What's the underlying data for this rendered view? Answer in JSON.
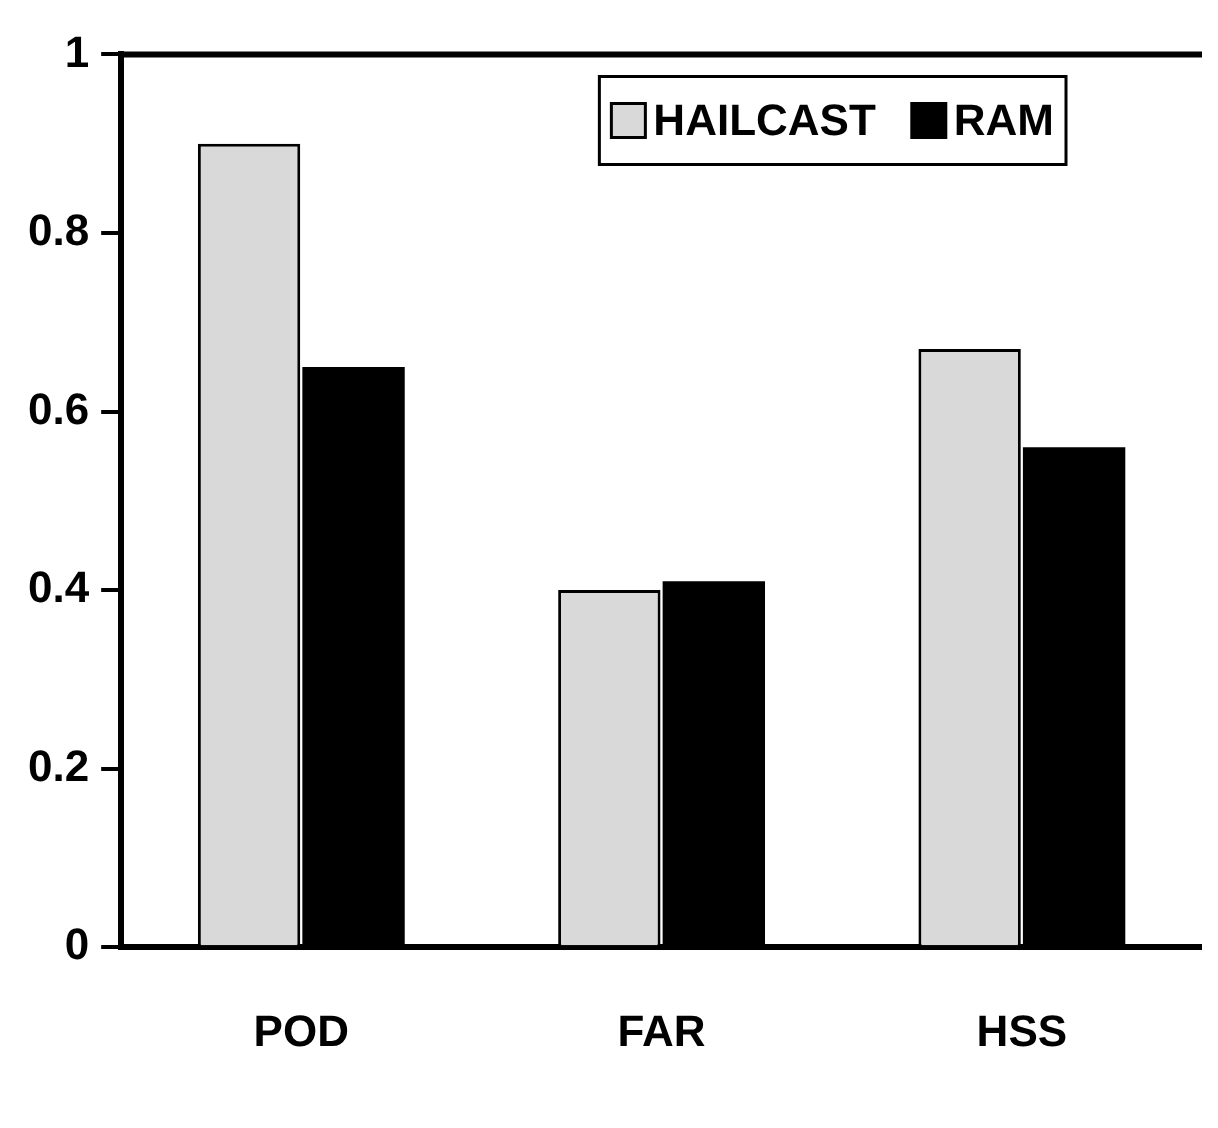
{
  "chart_data": {
    "type": "bar",
    "categories": [
      "POD",
      "FAR",
      "HSS"
    ],
    "series": [
      {
        "name": "HAILCAST",
        "color": "#d9d9d9",
        "values": [
          0.9,
          0.4,
          0.67
        ]
      },
      {
        "name": "RAM",
        "color": "#000000",
        "values": [
          0.65,
          0.41,
          0.56
        ]
      }
    ],
    "ylim": [
      0,
      1
    ],
    "yticks": [
      0,
      {
        "value": 0.2,
        "label": "0.2"
      },
      {
        "value": 0.4,
        "label": "0.4"
      },
      {
        "value": 0.6,
        "label": "0.6"
      },
      {
        "value": 0.8,
        "label": "0.8"
      },
      1
    ],
    "grid": false,
    "legend": "top right"
  }
}
